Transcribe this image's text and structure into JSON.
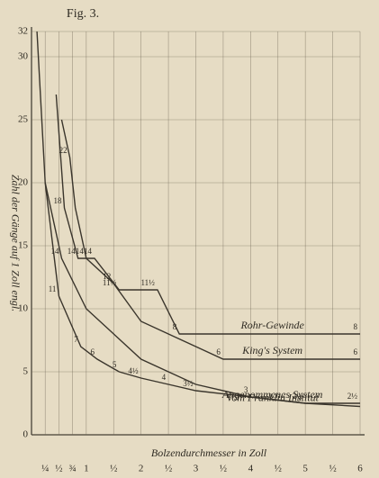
{
  "chart_data": {
    "type": "line",
    "title": "Fig. 3.",
    "xlabel": "Bolzendurchmesser in Zoll",
    "ylabel": "Zahl der Gänge auf 1 Zoll engl.",
    "xlim": [
      0,
      6
    ],
    "ylim": [
      0,
      32
    ],
    "xticks": [
      {
        "value": 0.25,
        "label": "¼"
      },
      {
        "value": 0.5,
        "label": "½"
      },
      {
        "value": 0.75,
        "label": "¾"
      },
      1,
      {
        "value": 1.5,
        "label": "½"
      },
      2,
      {
        "value": 2.5,
        "label": "½"
      },
      3,
      {
        "value": 3.5,
        "label": "½"
      },
      4,
      {
        "value": 4.5,
        "label": "½"
      },
      5,
      {
        "value": 5.5,
        "label": "½"
      },
      6
    ],
    "yticks": [
      0,
      5,
      10,
      15,
      20,
      25,
      30,
      32
    ],
    "grid": true,
    "color": "#3a352c",
    "series": [
      {
        "name": "Rohr-Gewinde",
        "color": "#3a352c",
        "x": [
          0.45,
          0.6,
          0.85,
          1.15,
          1.6,
          2.3,
          2.7,
          6
        ],
        "values": [
          27,
          18,
          14,
          14,
          11.5,
          11.5,
          8,
          8
        ],
        "value_labels": [
          null,
          "18",
          "14",
          "14",
          "11½",
          "11½",
          "8",
          "8"
        ]
      },
      {
        "name": "King's System",
        "color": "#3a352c",
        "x": [
          0.55,
          0.7,
          0.8,
          1,
          1.5,
          2,
          2.5,
          3,
          3.5,
          6
        ],
        "values": [
          25,
          22,
          18,
          14,
          12,
          9,
          8,
          7,
          6,
          6
        ],
        "value_labels": [
          null,
          "22",
          null,
          "14",
          "12",
          null,
          null,
          null,
          "6",
          "6"
        ]
      },
      {
        "name": "Vom Franklin Institut",
        "color": "#3a352c",
        "x": [
          0.25,
          0.5,
          0.9,
          1.2,
          1.6,
          2,
          2.5,
          3,
          4,
          5,
          6
        ],
        "values": [
          20,
          11,
          7,
          6,
          5,
          4.5,
          4,
          3.5,
          3,
          2.5,
          2.25
        ],
        "value_labels": [
          null,
          "11",
          "7",
          "6",
          "5",
          "4½",
          "4",
          "3½",
          "3",
          "2½",
          null
        ]
      },
      {
        "name": "Angenommenes System",
        "color": "#3a352c",
        "x": [
          0.1,
          0.25,
          0.55,
          1,
          2,
          3,
          4,
          5,
          6
        ],
        "values": [
          32,
          20,
          14,
          10,
          6,
          4,
          3,
          2.5,
          2.5
        ],
        "value_labels": [
          null,
          null,
          "14",
          null,
          null,
          null,
          null,
          null,
          "2½"
        ]
      }
    ]
  }
}
